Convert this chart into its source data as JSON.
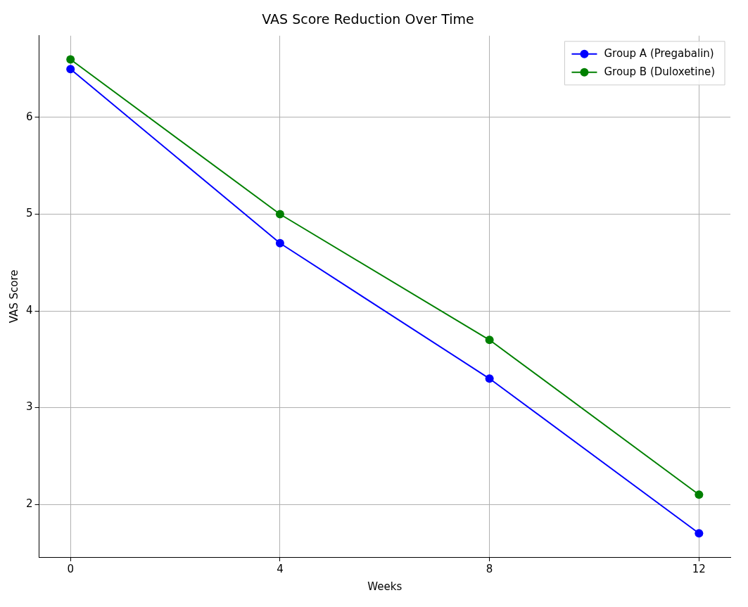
{
  "chart_data": {
    "type": "line",
    "title": "VAS Score Reduction Over Time",
    "xlabel": "Weeks",
    "ylabel": "VAS Score",
    "x": [
      0,
      4,
      8,
      12
    ],
    "series": [
      {
        "name": "Group A (Pregabalin)",
        "color": "#0000ff",
        "values": [
          6.5,
          4.7,
          3.3,
          1.7
        ]
      },
      {
        "name": "Group B (Duloxetine)",
        "color": "#008000",
        "values": [
          6.6,
          5.0,
          3.7,
          2.1
        ]
      }
    ],
    "xlim": [
      -0.6,
      12.6
    ],
    "xticks": [
      0,
      4,
      8,
      12
    ],
    "ylim": [
      1.455,
      6.845
    ],
    "yticks": [
      2,
      3,
      4,
      5,
      6
    ],
    "grid": true,
    "legend": "top right",
    "marker": "circle",
    "line_style": "solid"
  }
}
